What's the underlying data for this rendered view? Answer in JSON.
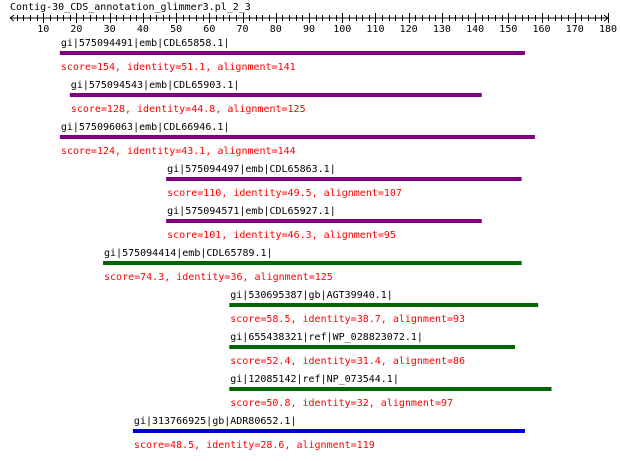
{
  "title": "Contig-30_CDS_annotation_glimmer3.pl_2_3",
  "ruler": {
    "min": 0,
    "max": 180,
    "tick_labels": [
      "10",
      "20",
      "30",
      "40",
      "50",
      "60",
      "70",
      "80",
      "90",
      "100",
      "110",
      "120",
      "130",
      "140",
      "150",
      "160",
      "170",
      "180"
    ]
  },
  "colors": {
    "text": "#000000",
    "score_text": "#ff0000",
    "purple": "#800080",
    "green": "#006600",
    "blue": "#0000cc",
    "ruler": "#000000"
  },
  "hits": [
    {
      "name": "gi|575094491|emb|CDL65858.1|",
      "score_text": "score=154, identity=51.1, alignment=141",
      "start": 15,
      "end": 155,
      "color": "purple"
    },
    {
      "name": "gi|575094543|emb|CDL65903.1|",
      "score_text": "score=128, identity=44.8, alignment=125",
      "start": 18,
      "end": 142,
      "color": "purple"
    },
    {
      "name": "gi|575096063|emb|CDL66946.1|",
      "score_text": "score=124, identity=43.1, alignment=144",
      "start": 15,
      "end": 158,
      "color": "purple"
    },
    {
      "name": "gi|575094497|emb|CDL65863.1|",
      "score_text": "score=110, identity=49.5, alignment=107",
      "start": 47,
      "end": 154,
      "color": "purple"
    },
    {
      "name": "gi|575094571|emb|CDL65927.1|",
      "score_text": "score=101, identity=46.3, alignment=95",
      "start": 47,
      "end": 142,
      "color": "purple"
    },
    {
      "name": "gi|575094414|emb|CDL65789.1|",
      "score_text": "score=74.3, identity=36, alignment=125",
      "start": 28,
      "end": 154,
      "color": "green"
    },
    {
      "name": "gi|530695387|gb|AGT39940.1|",
      "score_text": "score=58.5, identity=38.7, alignment=93",
      "start": 66,
      "end": 159,
      "color": "green"
    },
    {
      "name": "gi|655438321|ref|WP_028823072.1|",
      "score_text": "score=52.4, identity=31.4, alignment=86",
      "start": 66,
      "end": 152,
      "color": "green"
    },
    {
      "name": "gi|12085142|ref|NP_073544.1|",
      "score_text": "score=50.8, identity=32, alignment=97",
      "start": 66,
      "end": 163,
      "color": "green"
    },
    {
      "name": "gi|313766925|gb|ADR80652.1|",
      "score_text": "score=48.5, identity=28.6, alignment=119",
      "start": 37,
      "end": 155,
      "color": "blue"
    }
  ]
}
